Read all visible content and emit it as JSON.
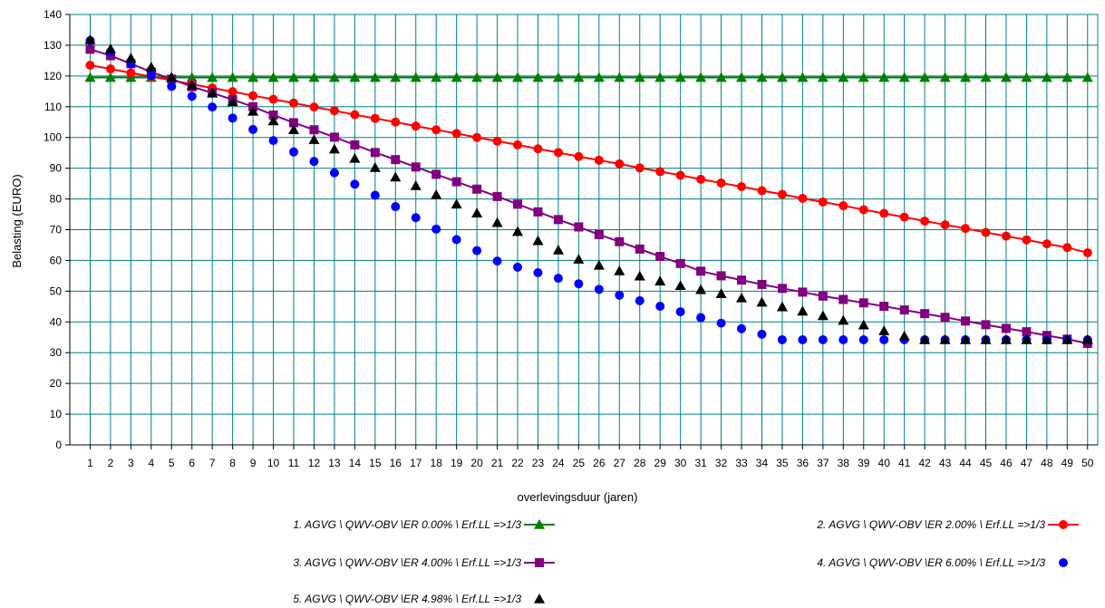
{
  "chart_data": {
    "type": "line",
    "title": "",
    "xlabel": "overlevingsduur (jaren)",
    "ylabel": "Belasting (EURO)",
    "ylim": [
      0,
      140
    ],
    "yticks": [
      0,
      10,
      20,
      30,
      40,
      50,
      60,
      70,
      80,
      90,
      100,
      110,
      120,
      130,
      140
    ],
    "x": [
      1,
      2,
      3,
      4,
      5,
      6,
      7,
      8,
      9,
      10,
      11,
      12,
      13,
      14,
      15,
      16,
      17,
      18,
      19,
      20,
      21,
      22,
      23,
      24,
      25,
      26,
      27,
      28,
      29,
      30,
      31,
      32,
      33,
      34,
      35,
      36,
      37,
      38,
      39,
      40,
      41,
      42,
      43,
      44,
      45,
      46,
      47,
      48,
      49,
      50
    ],
    "grid": true,
    "legend_position": "bottom",
    "series": [
      {
        "name": "1. AGVG \\ QWV-OBV \\ER 0.00% \\ Erf.LL =>1/3",
        "color": "#008000",
        "marker": "triangle",
        "line": true,
        "values": [
          119.5,
          119.5,
          119.5,
          119.5,
          119.5,
          119.5,
          119.5,
          119.5,
          119.5,
          119.5,
          119.5,
          119.5,
          119.5,
          119.5,
          119.5,
          119.5,
          119.5,
          119.5,
          119.5,
          119.5,
          119.5,
          119.5,
          119.5,
          119.5,
          119.5,
          119.5,
          119.5,
          119.5,
          119.5,
          119.5,
          119.5,
          119.5,
          119.5,
          119.5,
          119.5,
          119.5,
          119.5,
          119.5,
          119.5,
          119.5,
          119.5,
          119.5,
          119.5,
          119.5,
          119.5,
          119.5,
          119.5,
          119.5,
          119.5,
          119.5
        ]
      },
      {
        "name": "2. AGVG \\ QWV-OBV \\ER 2.00% \\ Erf.LL =>1/3",
        "color": "#ff0000",
        "marker": "circle",
        "line": true,
        "values": [
          123.5,
          122.3,
          121.0,
          119.8,
          118.6,
          117.3,
          116.1,
          114.9,
          113.6,
          112.4,
          111.2,
          109.9,
          108.7,
          107.4,
          106.2,
          105.0,
          103.7,
          102.5,
          101.3,
          100.0,
          98.8,
          97.6,
          96.3,
          95.1,
          93.8,
          92.6,
          91.4,
          90.1,
          88.9,
          87.7,
          86.4,
          85.2,
          84.0,
          82.7,
          81.5,
          80.2,
          79.0,
          77.8,
          76.5,
          75.3,
          74.1,
          72.8,
          71.6,
          70.4,
          69.1,
          67.9,
          66.7,
          65.4,
          64.2,
          62.5
        ]
      },
      {
        "name": "3. AGVG \\ QWV-OBV \\ER 4.00% \\ Erf.LL =>1/3",
        "color": "#800080",
        "marker": "square",
        "line": true,
        "values": [
          128.7,
          126.6,
          124.0,
          121.3,
          119.0,
          116.5,
          114.5,
          112.3,
          110.0,
          107.3,
          104.8,
          102.5,
          100.1,
          97.6,
          95.1,
          92.8,
          90.4,
          88.0,
          85.6,
          83.2,
          80.8,
          78.3,
          75.8,
          73.3,
          70.9,
          68.4,
          66.1,
          63.7,
          61.3,
          59.0,
          56.5,
          55.0,
          53.6,
          52.2,
          50.9,
          49.7,
          48.4,
          47.3,
          46.2,
          45.1,
          43.9,
          42.7,
          41.5,
          40.3,
          39.1,
          37.9,
          36.8,
          35.6,
          34.4,
          33.0
        ]
      },
      {
        "name": "4. AGVG \\ QWV-OBV \\ER 6.00% \\ Erf.LL =>1/3",
        "color": "#0000ff",
        "marker": "circle",
        "line": false,
        "values": [
          131.5,
          127.8,
          124.0,
          120.2,
          116.6,
          113.4,
          109.9,
          106.3,
          102.6,
          99.0,
          95.3,
          92.2,
          88.5,
          84.8,
          81.2,
          77.5,
          73.9,
          70.2,
          66.8,
          63.2,
          59.8,
          57.8,
          56.0,
          54.2,
          52.4,
          50.6,
          48.7,
          46.9,
          45.1,
          43.3,
          41.4,
          39.6,
          37.8,
          36.0,
          34.2,
          34.2,
          34.2,
          34.2,
          34.2,
          34.2,
          34.2,
          34.2,
          34.2,
          34.2,
          34.2,
          34.2,
          34.2,
          34.2,
          34.2,
          34.2
        ]
      },
      {
        "name": "5. AGVG \\ QWV-OBV \\ER 4.98% \\ Erf.LL =>1/3",
        "color": "#000000",
        "marker": "triangle",
        "line": false,
        "values": [
          131.8,
          128.8,
          125.8,
          122.9,
          119.6,
          116.9,
          114.4,
          111.6,
          108.5,
          105.4,
          102.5,
          99.3,
          96.2,
          93.2,
          90.2,
          87.1,
          84.3,
          81.4,
          78.3,
          75.4,
          72.3,
          69.4,
          66.4,
          63.4,
          60.4,
          58.4,
          56.6,
          54.9,
          53.3,
          51.8,
          50.5,
          49.2,
          47.8,
          46.4,
          44.9,
          43.5,
          42.0,
          40.5,
          39.0,
          37.1,
          35.4,
          34.2,
          34.2,
          34.2,
          34.2,
          34.2,
          34.2,
          34.2,
          34.2,
          34.2
        ]
      }
    ]
  }
}
